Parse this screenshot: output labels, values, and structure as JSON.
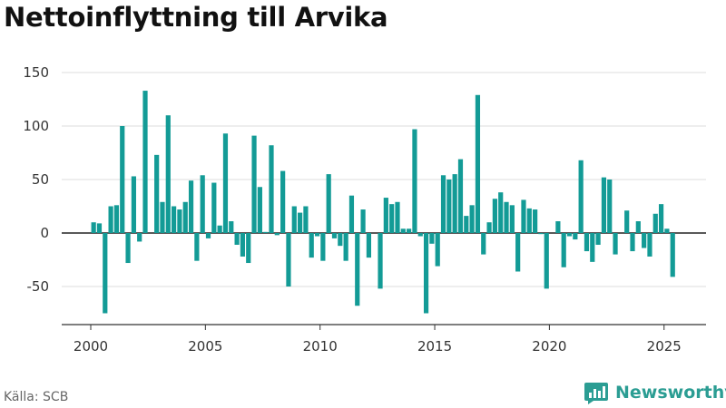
{
  "title": "Nettoinflyttning till Arvika",
  "source": "Källa: SCB",
  "brand": "Newsworthy",
  "colors": {
    "bar": "#139b96",
    "grid": "#dcdcdc",
    "axis": "#333333",
    "brand": "#2b9d93"
  },
  "chart_data": {
    "type": "bar",
    "title": "Nettoinflyttning till Arvika",
    "xlabel": "",
    "ylabel": "",
    "ylim": [
      -85,
      150
    ],
    "xlim": [
      1999.0,
      2026.9
    ],
    "yticks": [
      150,
      100,
      50,
      0,
      -50
    ],
    "xticks": [
      2000,
      2005,
      2010,
      2015,
      2020,
      2025
    ],
    "grid": true,
    "legend": "none",
    "x": [
      2000.125,
      2000.375,
      2000.625,
      2000.875,
      2001.125,
      2001.375,
      2001.625,
      2001.875,
      2002.125,
      2002.375,
      2002.625,
      2002.875,
      2003.125,
      2003.375,
      2003.625,
      2003.875,
      2004.125,
      2004.375,
      2004.625,
      2004.875,
      2005.125,
      2005.375,
      2005.625,
      2005.875,
      2006.125,
      2006.375,
      2006.625,
      2006.875,
      2007.125,
      2007.375,
      2007.625,
      2007.875,
      2008.125,
      2008.375,
      2008.625,
      2008.875,
      2009.125,
      2009.375,
      2009.625,
      2009.875,
      2010.125,
      2010.375,
      2010.625,
      2010.875,
      2011.125,
      2011.375,
      2011.625,
      2011.875,
      2012.125,
      2012.375,
      2012.625,
      2012.875,
      2013.125,
      2013.375,
      2013.625,
      2013.875,
      2014.125,
      2014.375,
      2014.625,
      2014.875,
      2015.125,
      2015.375,
      2015.625,
      2015.875,
      2016.125,
      2016.375,
      2016.625,
      2016.875,
      2017.125,
      2017.375,
      2017.625,
      2017.875,
      2018.125,
      2018.375,
      2018.625,
      2018.875,
      2019.125,
      2019.375,
      2019.625,
      2019.875,
      2020.125,
      2020.375,
      2020.625,
      2020.875,
      2021.125,
      2021.375,
      2021.625,
      2021.875,
      2022.125,
      2022.375,
      2022.625,
      2022.875,
      2023.125,
      2023.375,
      2023.625,
      2023.875,
      2024.125,
      2024.375,
      2024.625,
      2024.875,
      2025.125,
      2025.375
    ],
    "values": [
      10,
      9,
      -75,
      25,
      26,
      100,
      -28,
      53,
      -8,
      133,
      0,
      73,
      29,
      110,
      25,
      22,
      29,
      49,
      -26,
      54,
      -5,
      47,
      7,
      93,
      11,
      -11,
      -22,
      -28,
      91,
      43,
      1,
      82,
      -2,
      58,
      -50,
      25,
      19,
      25,
      -23,
      -3,
      -26,
      55,
      -5,
      -12,
      -26,
      35,
      -68,
      22,
      -23,
      0,
      -52,
      33,
      27,
      29,
      4,
      4,
      97,
      -3,
      -75,
      -10,
      -31,
      54,
      50,
      55,
      69,
      16,
      26,
      129,
      -20,
      10,
      32,
      38,
      29,
      26,
      -36,
      31,
      23,
      22,
      -1,
      -52,
      0,
      11,
      -32,
      -3,
      -6,
      68,
      -17,
      -27,
      -11,
      52,
      50,
      -20,
      0,
      21,
      -17,
      11,
      -14,
      -22,
      18,
      27,
      4,
      -41
    ]
  }
}
